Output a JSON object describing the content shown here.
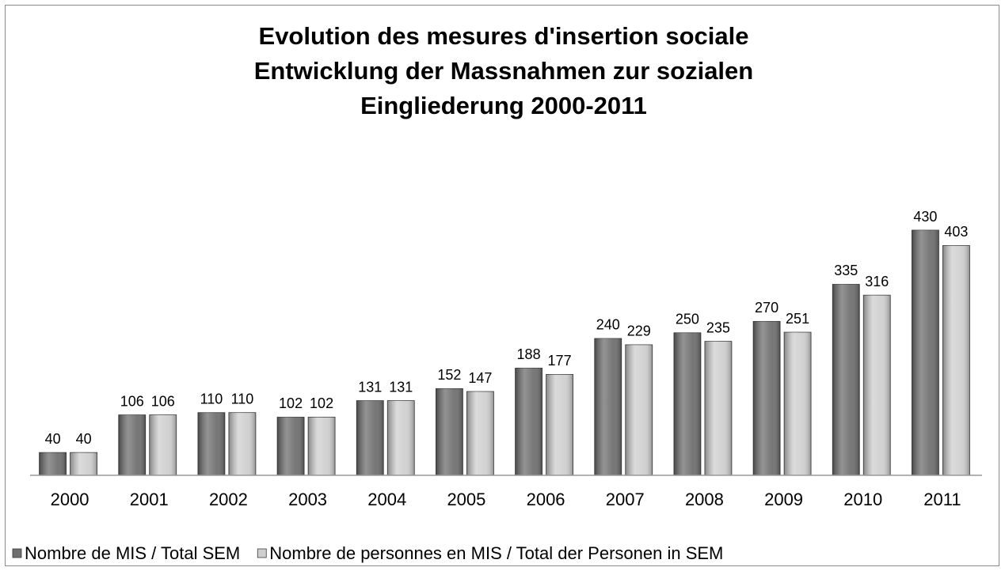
{
  "chart_data": {
    "type": "bar",
    "title": [
      "Evolution des mesures d'insertion sociale",
      "Entwicklung der Massnahmen zur sozialen",
      "Eingliederung 2000-2011"
    ],
    "categories": [
      "2000",
      "2001",
      "2002",
      "2003",
      "2004",
      "2005",
      "2006",
      "2007",
      "2008",
      "2009",
      "2010",
      "2011"
    ],
    "series": [
      {
        "name": "Nombre de MIS / Total SEM",
        "color": "#6f6f6f",
        "values": [
          40,
          106,
          110,
          102,
          131,
          152,
          188,
          240,
          250,
          270,
          335,
          430
        ]
      },
      {
        "name": "Nombre de personnes en MIS / Total der Personen in SEM",
        "color": "#cfcfcf",
        "values": [
          40,
          106,
          110,
          102,
          131,
          147,
          177,
          229,
          235,
          251,
          316,
          403
        ]
      }
    ],
    "legend": "bottom"
  }
}
